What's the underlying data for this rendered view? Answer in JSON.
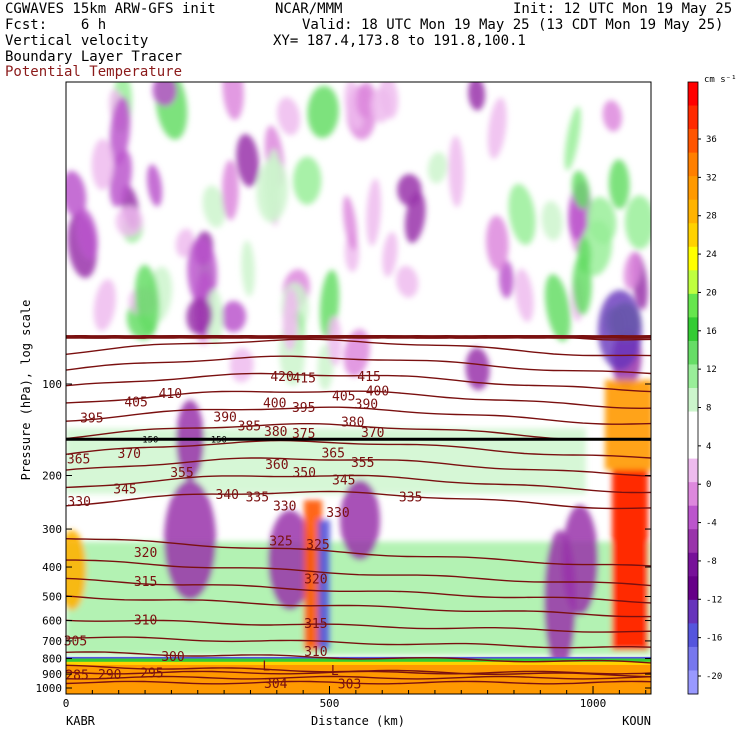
{
  "header": {
    "line1_left": "CGWAVES 15km ARW-GFS init",
    "line1_mid": "NCAR/MMM",
    "line1_right": "Init: 12 UTC Mon 19 May 25",
    "line2_left": "Fcst:    6 h",
    "line2_right": "Valid: 18 UTC Mon 19 May 25 (13 CDT Mon 19 May 25)",
    "line3_left": "Vertical velocity",
    "line3_right": "XY= 187.4,173.8 to 191.8,100.1",
    "line4_left": "Boundary Layer Tracer",
    "line5_left": "Potential Temperature"
  },
  "chart_data": {
    "type": "heatmap",
    "title": "Vertical velocity",
    "xlabel": "Distance (km)",
    "ylabel": "Pressure (hPa), log scale",
    "y_scale": "log",
    "x_ticks": [
      0,
      500,
      1000
    ],
    "x_tick_labels": [
      "0",
      "500",
      "1000"
    ],
    "x_end_labels": [
      "KABR",
      "KOUN"
    ],
    "y_ticks": [
      100,
      200,
      300,
      400,
      500,
      600,
      700,
      800,
      900,
      1000
    ],
    "y_tick_labels": [
      "100",
      "200",
      "300",
      "400",
      "500",
      "600",
      "700",
      "800",
      "900",
      "1000"
    ],
    "colorbar": {
      "unit": "cm s⁻¹",
      "ticks": [
        36,
        32,
        28,
        24,
        20,
        16,
        12,
        8,
        4,
        0,
        -4,
        -8,
        -12,
        -16,
        -20
      ],
      "colors": [
        "#ff0000",
        "#ff2a00",
        "#ff5500",
        "#ff7f00",
        "#ff9900",
        "#ffb300",
        "#ffd200",
        "#ffff00",
        "#bfff3f",
        "#66e64d",
        "#33cc33",
        "#66dd66",
        "#99ee99",
        "#ccf5cc",
        "#ffffff",
        "#ffffff",
        "#eebbee",
        "#dd88dd",
        "#bb55cc",
        "#9933aa",
        "#771199",
        "#660088",
        "#6633bb",
        "#5555dd",
        "#7777ee",
        "#9999ff"
      ]
    },
    "theta_contour_labels": [
      {
        "text": "420",
        "x": 410,
        "p": 95
      },
      {
        "text": "415",
        "x": 452,
        "p": 96
      },
      {
        "text": "415",
        "x": 575,
        "p": 95
      },
      {
        "text": "410",
        "x": 198,
        "p": 108
      },
      {
        "text": "405",
        "x": 133,
        "p": 115
      },
      {
        "text": "405",
        "x": 527,
        "p": 110
      },
      {
        "text": "400",
        "x": 396,
        "p": 116
      },
      {
        "text": "400",
        "x": 591,
        "p": 106
      },
      {
        "text": "395",
        "x": 49,
        "p": 130
      },
      {
        "text": "395",
        "x": 451,
        "p": 120
      },
      {
        "text": "390",
        "x": 302,
        "p": 129
      },
      {
        "text": "390",
        "x": 570,
        "p": 117
      },
      {
        "text": "385",
        "x": 348,
        "p": 138
      },
      {
        "text": "380",
        "x": 398,
        "p": 144
      },
      {
        "text": "380",
        "x": 544,
        "p": 134
      },
      {
        "text": "375",
        "x": 451,
        "p": 146
      },
      {
        "text": "370",
        "x": 582,
        "p": 145
      },
      {
        "text": "370",
        "x": 120,
        "p": 170
      },
      {
        "text": "365",
        "x": 24,
        "p": 177
      },
      {
        "text": "365",
        "x": 507,
        "p": 169
      },
      {
        "text": "360",
        "x": 400,
        "p": 185
      },
      {
        "text": "355",
        "x": 220,
        "p": 196
      },
      {
        "text": "355",
        "x": 563,
        "p": 182
      },
      {
        "text": "350",
        "x": 452,
        "p": 196
      },
      {
        "text": "345",
        "x": 112,
        "p": 222
      },
      {
        "text": "345",
        "x": 527,
        "p": 208
      },
      {
        "text": "340",
        "x": 306,
        "p": 232
      },
      {
        "text": "335",
        "x": 363,
        "p": 236
      },
      {
        "text": "335",
        "x": 654,
        "p": 236
      },
      {
        "text": "330",
        "x": 25,
        "p": 244
      },
      {
        "text": "330",
        "x": 415,
        "p": 253
      },
      {
        "text": "330",
        "x": 516,
        "p": 266
      },
      {
        "text": "325",
        "x": 408,
        "p": 330
      },
      {
        "text": "325",
        "x": 478,
        "p": 338
      },
      {
        "text": "320",
        "x": 151,
        "p": 360
      },
      {
        "text": "320",
        "x": 474,
        "p": 440
      },
      {
        "text": "315",
        "x": 151,
        "p": 448
      },
      {
        "text": "315",
        "x": 474,
        "p": 615
      },
      {
        "text": "310",
        "x": 151,
        "p": 600
      },
      {
        "text": "310",
        "x": 474,
        "p": 760
      },
      {
        "text": "305",
        "x": 18,
        "p": 702
      },
      {
        "text": "304",
        "x": 398,
        "p": 970
      },
      {
        "text": "303",
        "x": 538,
        "p": 975
      },
      {
        "text": "300",
        "x": 203,
        "p": 790
      },
      {
        "text": "295",
        "x": 163,
        "p": 895
      },
      {
        "text": "290",
        "x": 83,
        "p": 905
      },
      {
        "text": "285",
        "x": 21,
        "p": 910
      }
    ],
    "low_markers": [
      {
        "text": "L",
        "x": 380,
        "p": 850
      },
      {
        "text": "L",
        "x": 510,
        "p": 880
      }
    ],
    "tracer_labels": [
      {
        "text": "150",
        "x": 160,
        "p": 152
      },
      {
        "text": "150",
        "x": 290,
        "p": 152
      }
    ]
  }
}
